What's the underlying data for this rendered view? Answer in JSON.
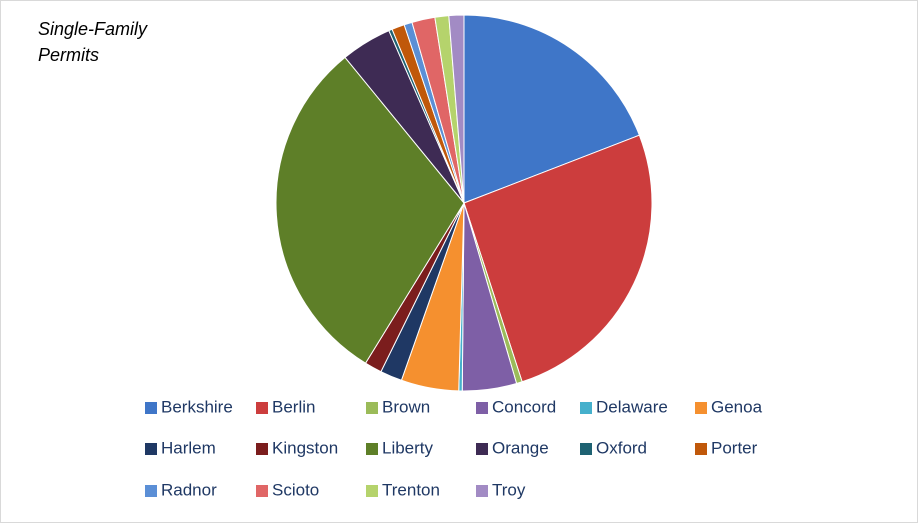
{
  "chart_data": {
    "type": "pie",
    "title": "Single-Family Permits",
    "categories": [
      "Berkshire",
      "Berlin",
      "Brown",
      "Concord",
      "Delaware",
      "Genoa",
      "Harlem",
      "Kingston",
      "Liberty",
      "Orange",
      "Oxford",
      "Porter",
      "Radnor",
      "Scioto",
      "Trenton",
      "Troy"
    ],
    "values": [
      19.3,
      26.1,
      0.5,
      4.7,
      0.3,
      5.0,
      1.9,
      1.5,
      30.6,
      4.4,
      0.3,
      1.1,
      0.7,
      2.0,
      1.2,
      1.3
    ],
    "colors": [
      "#3f76c8",
      "#cc3d3d",
      "#9bbb59",
      "#7e5fa6",
      "#45b0cc",
      "#f5902f",
      "#1f3864",
      "#7b1d1d",
      "#5e7f28",
      "#3e2b54",
      "#1e6272",
      "#c0580a",
      "#5b8fd6",
      "#e06666",
      "#b5d36c",
      "#a28bc4"
    ],
    "legend": "bottom"
  }
}
